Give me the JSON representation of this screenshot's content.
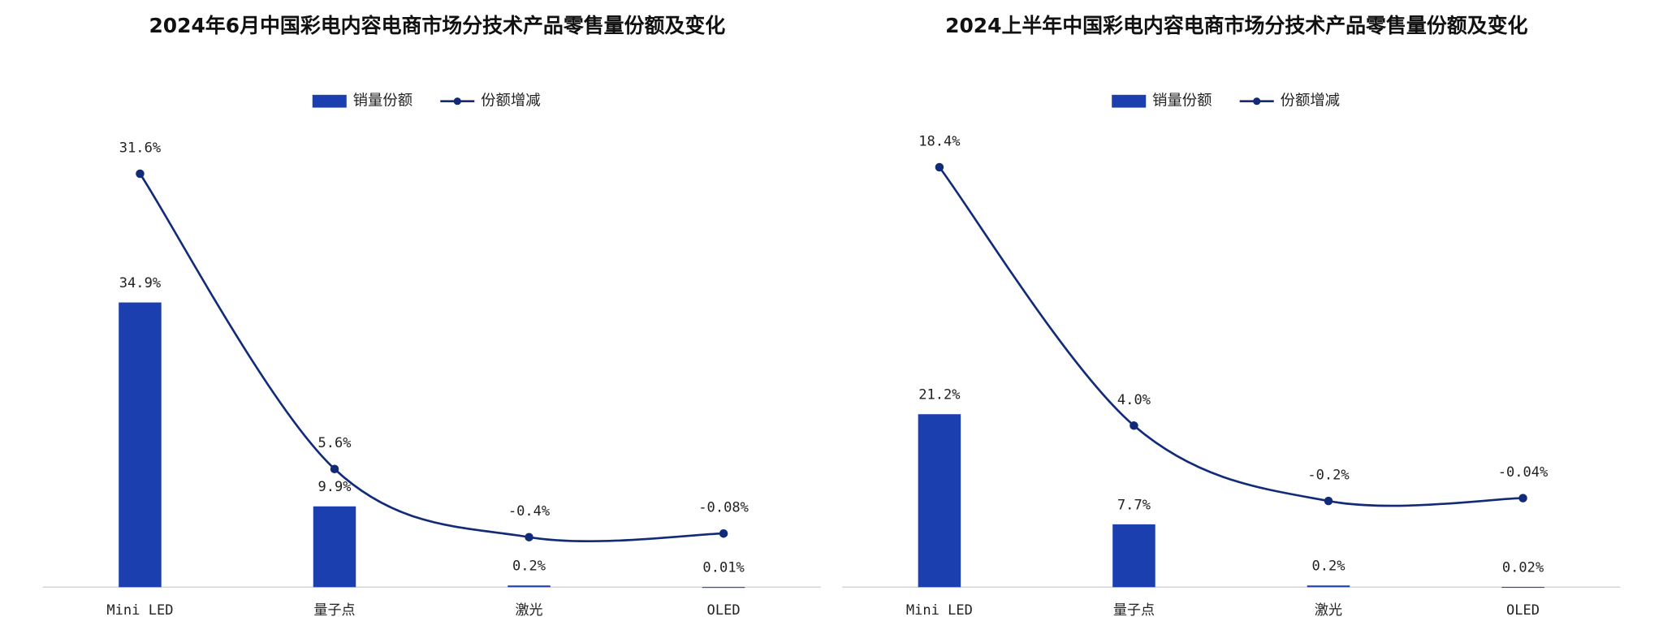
{
  "chart_data": [
    {
      "type": "combo",
      "title": "2024年6月中国彩电内容电商市场分技术产品零售量份额及变化",
      "categories": [
        "Mini LED",
        "量子点",
        "激光",
        "OLED"
      ],
      "series": [
        {
          "name": "销量份额",
          "mark": "bar",
          "color": "#1b3fae",
          "values": [
            34.9,
            9.9,
            0.2,
            0.01
          ],
          "value_labels": [
            "34.9%",
            "9.9%",
            "0.2%",
            "0.01%"
          ]
        },
        {
          "name": "份额增减",
          "mark": "line",
          "axis": "y2",
          "color": "#112b78",
          "values": [
            31.6,
            5.6,
            -0.4,
            -0.08
          ],
          "value_labels": [
            "31.6%",
            "5.6%",
            "-0.4%",
            "-0.08%"
          ]
        }
      ],
      "ylim": [
        0,
        55
      ],
      "y2lim": [
        -4.8,
        34.7
      ]
    },
    {
      "type": "combo",
      "title": "2024上半年中国彩电内容电商市场分技术产品零售量份额及变化",
      "categories": [
        "Mini LED",
        "量子点",
        "激光",
        "OLED"
      ],
      "series": [
        {
          "name": "销量份额",
          "mark": "bar",
          "color": "#1b3fae",
          "values": [
            21.2,
            7.7,
            0.2,
            0.02
          ],
          "value_labels": [
            "21.2%",
            "7.7%",
            "0.2%",
            "0.02%"
          ]
        },
        {
          "name": "份额增减",
          "mark": "line",
          "axis": "y2",
          "color": "#112b78",
          "values": [
            18.4,
            4.0,
            -0.2,
            -0.04
          ],
          "value_labels": [
            "18.4%",
            "4.0%",
            "-0.2%",
            "-0.04%"
          ]
        }
      ],
      "ylim": [
        0,
        55
      ],
      "y2lim": [
        -5,
        20
      ]
    }
  ]
}
